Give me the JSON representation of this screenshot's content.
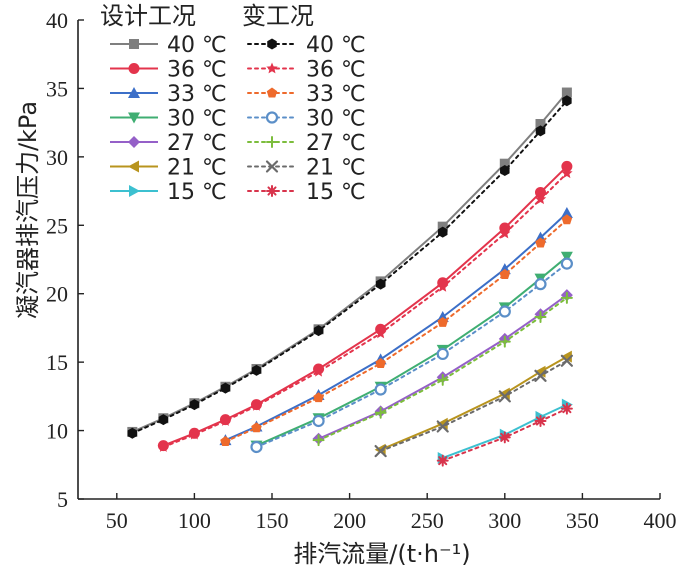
{
  "chart_data": {
    "type": "line",
    "xlabel": "排汽流量/(t·h⁻¹)",
    "ylabel": "凝汽器排汽压力/kPa",
    "xlim": [
      25,
      400
    ],
    "ylim": [
      5,
      40
    ],
    "x_ticks": [
      "50",
      "100",
      "150",
      "200",
      "250",
      "300",
      "350",
      "400"
    ],
    "y_ticks": [
      "5",
      "10",
      "15",
      "20",
      "25",
      "30",
      "35",
      "40"
    ],
    "grid": false,
    "legend": {
      "placement": "top-left",
      "group_titles": [
        "设计工况",
        "变工况"
      ]
    },
    "series": [
      {
        "name": "40 ℃",
        "group": "设计工况",
        "color": "#7f7f7f",
        "dash": "solid",
        "marker": "square",
        "x": [
          60,
          80,
          100,
          120,
          140,
          180,
          220,
          260,
          300,
          323,
          340
        ],
        "y": [
          9.9,
          10.9,
          12.0,
          13.2,
          14.5,
          17.4,
          20.9,
          24.9,
          29.5,
          32.4,
          34.7
        ]
      },
      {
        "name": "36 ℃",
        "group": "设计工况",
        "color": "#e3344c",
        "dash": "solid",
        "marker": "circle",
        "x": [
          80,
          100,
          120,
          140,
          180,
          220,
          260,
          300,
          323,
          340
        ],
        "y": [
          8.9,
          9.8,
          10.8,
          11.9,
          14.5,
          17.4,
          20.8,
          24.8,
          27.4,
          29.3
        ]
      },
      {
        "name": "33 ℃",
        "group": "设计工况",
        "color": "#3c6fc8",
        "dash": "solid",
        "marker": "triangle-up",
        "x": [
          120,
          140,
          180,
          220,
          260,
          300,
          323,
          340
        ],
        "y": [
          9.3,
          10.3,
          12.6,
          15.2,
          18.3,
          21.8,
          24.1,
          25.9
        ]
      },
      {
        "name": "30 ℃",
        "group": "设计工况",
        "color": "#3fae72",
        "dash": "solid",
        "marker": "triangle-down",
        "x": [
          140,
          180,
          220,
          260,
          300,
          323,
          340
        ],
        "y": [
          8.9,
          10.9,
          13.2,
          15.9,
          19.0,
          21.1,
          22.7
        ]
      },
      {
        "name": "27 ℃",
        "group": "设计工况",
        "color": "#9560c8",
        "dash": "solid",
        "marker": "diamond",
        "x": [
          180,
          220,
          260,
          300,
          323,
          340
        ],
        "y": [
          9.4,
          11.4,
          13.9,
          16.7,
          18.5,
          19.9
        ]
      },
      {
        "name": "21 ℃",
        "group": "设计工况",
        "color": "#b8941e",
        "dash": "solid",
        "marker": "triangle-left",
        "x": [
          220,
          260,
          300,
          323,
          340
        ],
        "y": [
          8.6,
          10.5,
          12.7,
          14.3,
          15.4
        ]
      },
      {
        "name": "15 ℃",
        "group": "设计工况",
        "color": "#3cc0d0",
        "dash": "solid",
        "marker": "triangle-right",
        "x": [
          260,
          300,
          323,
          340
        ],
        "y": [
          8.0,
          9.7,
          11.0,
          11.9
        ]
      },
      {
        "name": "40 ℃",
        "group": "变工况",
        "color": "#111111",
        "dash": "dotted",
        "marker": "hexagon",
        "x": [
          60,
          80,
          100,
          120,
          140,
          180,
          220,
          260,
          300,
          323,
          340
        ],
        "y": [
          9.8,
          10.8,
          11.9,
          13.1,
          14.4,
          17.3,
          20.7,
          24.5,
          29.0,
          31.9,
          34.1
        ]
      },
      {
        "name": "36 ℃",
        "group": "变工况",
        "color": "#e3344c",
        "dash": "dotted",
        "marker": "star",
        "x": [
          80,
          100,
          120,
          140,
          180,
          220,
          260,
          300,
          323,
          340
        ],
        "y": [
          8.8,
          9.7,
          10.7,
          11.8,
          14.3,
          17.1,
          20.5,
          24.4,
          26.9,
          28.8
        ]
      },
      {
        "name": "33 ℃",
        "group": "变工况",
        "color": "#ee6a2c",
        "dash": "dotted",
        "marker": "pentagon",
        "x": [
          120,
          140,
          180,
          220,
          260,
          300,
          323,
          340
        ],
        "y": [
          9.2,
          10.2,
          12.4,
          14.9,
          17.9,
          21.4,
          23.7,
          25.4
        ]
      },
      {
        "name": "30 ℃",
        "group": "变工况",
        "color": "#5b8fc8",
        "dash": "dotted",
        "marker": "circle-open",
        "x": [
          140,
          180,
          220,
          260,
          300,
          323,
          340
        ],
        "y": [
          8.8,
          10.7,
          13.0,
          15.6,
          18.7,
          20.7,
          22.2
        ]
      },
      {
        "name": "27 ℃",
        "group": "变工况",
        "color": "#7cbd3c",
        "dash": "dotted",
        "marker": "plus",
        "x": [
          180,
          220,
          260,
          300,
          323,
          340
        ],
        "y": [
          9.3,
          11.3,
          13.7,
          16.5,
          18.3,
          19.7
        ]
      },
      {
        "name": "21 ℃",
        "group": "变工况",
        "color": "#6b6b6b",
        "dash": "dotted",
        "marker": "x",
        "x": [
          220,
          260,
          300,
          323,
          340
        ],
        "y": [
          8.5,
          10.3,
          12.5,
          14.0,
          15.1
        ]
      },
      {
        "name": "15 ℃",
        "group": "变工况",
        "color": "#d8344c",
        "dash": "dotted",
        "marker": "asterisk",
        "x": [
          260,
          300,
          323,
          340
        ],
        "y": [
          7.8,
          9.5,
          10.7,
          11.6
        ]
      }
    ]
  }
}
